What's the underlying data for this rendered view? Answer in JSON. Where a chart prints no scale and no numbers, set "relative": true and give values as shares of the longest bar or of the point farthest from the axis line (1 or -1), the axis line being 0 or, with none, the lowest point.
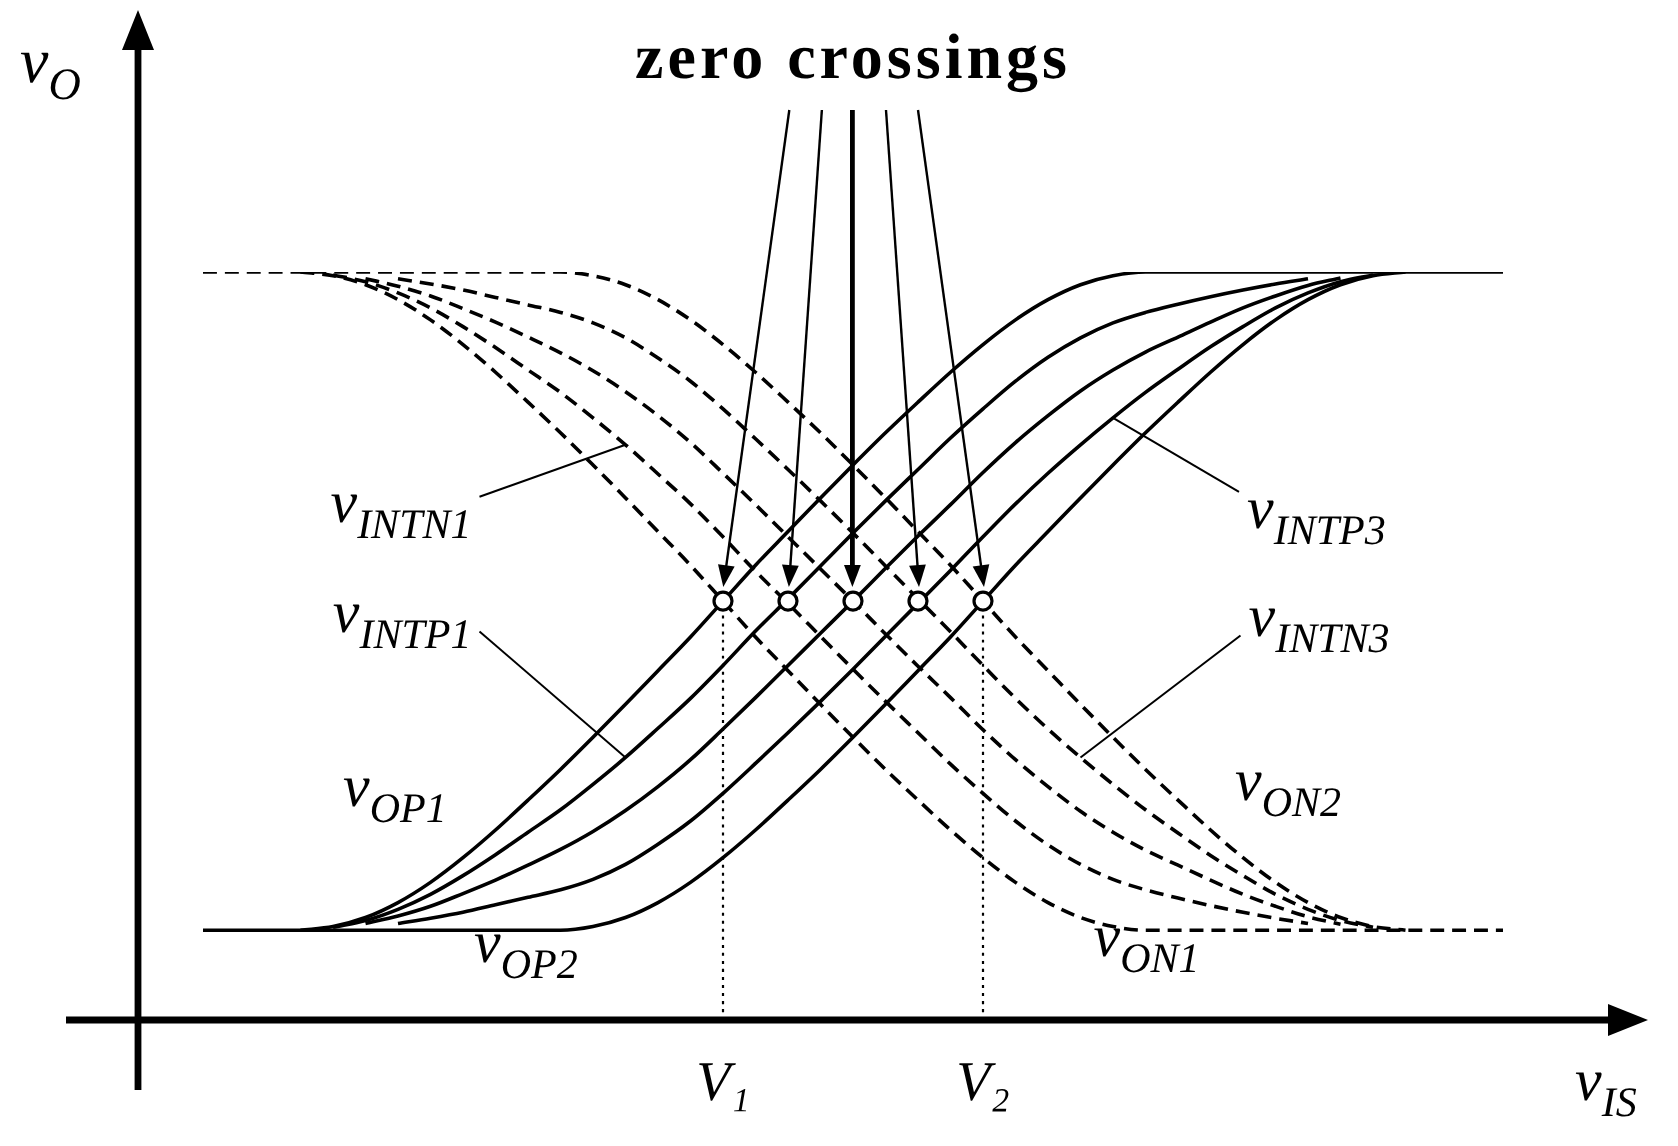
{
  "chart_data": {
    "type": "line",
    "relative": true,
    "xlabel": "v$_{IS}$",
    "ylabel": "v$_{O}$",
    "annotations": [
      "zero crossings",
      "v$_{INTN1}$",
      "v$_{INTP3}$",
      "v$_{INTP1}$",
      "v$_{INTN3}$"
    ],
    "tick_labels": "x",
    "categories": [
      null,
      null,
      null,
      null,
      null,
      null,
      null,
      null,
      null,
      null,
      null,
      null,
      null,
      null,
      null,
      null,
      null,
      null,
      "V₁",
      null,
      null,
      null,
      null,
      null,
      null,
      null,
      "V₂",
      null,
      null,
      null,
      null,
      null,
      null,
      null,
      null,
      null,
      null,
      null,
      null,
      null,
      null,
      null,
      null
    ],
    "series": [
      {
        "name": "v$_{OP1}$",
        "color": "#000000",
        "values": [
          null,
          null,
          null,
          null,
          null,
          0.12,
          0.125,
          0.137,
          0.157,
          0.184,
          0.217,
          0.254,
          0.294,
          0.335,
          0.378,
          0.422,
          0.467,
          0.512,
          0.56,
          0.608,
          0.653,
          0.698,
          0.742,
          0.785,
          0.826,
          0.866,
          0.903,
          0.936,
          0.963,
          0.983,
          0.995,
          1,
          1,
          1,
          1,
          1,
          1,
          1,
          1,
          1,
          1,
          1,
          1
        ]
      },
      {
        "color": "#000000",
        "values": [
          null,
          null,
          null,
          null,
          null,
          null,
          0.124,
          0.133,
          0.148,
          0.168,
          0.193,
          0.221,
          0.251,
          0.281,
          0.315,
          0.351,
          0.39,
          0.43,
          0.474,
          0.52,
          0.563,
          0.607,
          0.651,
          0.694,
          0.736,
          0.778,
          0.817,
          0.854,
          0.886,
          0.912,
          0.932,
          0.946,
          0.957,
          0.967,
          0.976,
          0.984,
          0.991,
          null,
          null,
          null,
          null,
          null,
          null
        ]
      },
      {
        "color": "#000000",
        "values": [
          null,
          null,
          null,
          null,
          null,
          null,
          null,
          0.129,
          0.139,
          0.152,
          0.169,
          0.187,
          0.207,
          0.228,
          0.252,
          0.28,
          0.312,
          0.348,
          0.389,
          0.431,
          0.474,
          0.517,
          0.56,
          0.604,
          0.647,
          0.689,
          0.732,
          0.772,
          0.808,
          0.841,
          0.869,
          0.893,
          0.913,
          0.933,
          0.952,
          0.968,
          0.982,
          0.992,
          null,
          null,
          null,
          null,
          null
        ]
      },
      {
        "color": "#000000",
        "values": [
          null,
          null,
          null,
          null,
          null,
          null,
          null,
          null,
          0.129,
          0.136,
          0.144,
          0.154,
          0.164,
          0.174,
          0.188,
          0.208,
          0.235,
          0.266,
          0.303,
          0.343,
          0.384,
          0.426,
          0.469,
          0.513,
          0.557,
          0.601,
          0.646,
          0.69,
          0.731,
          0.769,
          0.805,
          0.839,
          0.87,
          0.9,
          0.927,
          0.952,
          0.972,
          0.987,
          0.996,
          null,
          null,
          null,
          null
        ]
      },
      {
        "name": "v$_{OP2}$",
        "color": "#000000",
        "values": [
          null,
          null,
          0.12,
          0.12,
          0.12,
          0.12,
          0.12,
          0.12,
          0.12,
          0.12,
          0.12,
          0.12,
          0.12,
          0.12,
          0.125,
          0.137,
          0.157,
          0.184,
          0.217,
          0.254,
          0.294,
          0.335,
          0.378,
          0.422,
          0.467,
          0.512,
          0.56,
          0.608,
          0.653,
          0.698,
          0.742,
          0.785,
          0.826,
          0.866,
          0.903,
          0.936,
          0.963,
          0.983,
          0.995,
          1,
          null,
          null,
          null
        ]
      },
      {
        "name": "v$_{ON1}$",
        "color": "#000000",
        "line_style": "dashed",
        "values": [
          null,
          null,
          null,
          null,
          null,
          1,
          0.995,
          0.983,
          0.963,
          0.936,
          0.903,
          0.866,
          0.826,
          0.785,
          0.742,
          0.698,
          0.653,
          0.608,
          0.56,
          0.512,
          0.467,
          0.422,
          0.378,
          0.335,
          0.294,
          0.254,
          0.217,
          0.184,
          0.157,
          0.137,
          0.125,
          0.12,
          0.12,
          0.12,
          0.12,
          0.12,
          0.12,
          0.12,
          0.12,
          0.12,
          0.12,
          0.12,
          0.12
        ]
      },
      {
        "color": "#000000",
        "line_style": "dashed",
        "values": [
          null,
          null,
          null,
          null,
          null,
          null,
          0.996,
          0.987,
          0.972,
          0.952,
          0.927,
          0.899,
          0.869,
          0.839,
          0.805,
          0.769,
          0.73,
          0.69,
          0.646,
          0.6,
          0.557,
          0.513,
          0.469,
          0.426,
          0.384,
          0.342,
          0.303,
          0.266,
          0.234,
          0.208,
          0.188,
          0.174,
          0.163,
          0.153,
          0.144,
          0.136,
          0.129,
          null,
          null,
          null,
          null,
          null,
          null
        ]
      },
      {
        "color": "#000000",
        "line_style": "dashed",
        "values": [
          null,
          null,
          null,
          null,
          null,
          null,
          null,
          0.991,
          0.981,
          0.968,
          0.951,
          0.933,
          0.913,
          0.892,
          0.868,
          0.84,
          0.808,
          0.772,
          0.731,
          0.689,
          0.646,
          0.603,
          0.56,
          0.516,
          0.473,
          0.431,
          0.388,
          0.348,
          0.312,
          0.279,
          0.251,
          0.227,
          0.207,
          0.187,
          0.168,
          0.152,
          0.138,
          0.128,
          null,
          null,
          null,
          null,
          null
        ]
      },
      {
        "color": "#000000",
        "line_style": "dashed",
        "values": [
          null,
          null,
          null,
          null,
          null,
          null,
          null,
          null,
          0.991,
          0.984,
          0.976,
          0.966,
          0.956,
          0.946,
          0.932,
          0.912,
          0.885,
          0.854,
          0.817,
          0.777,
          0.736,
          0.694,
          0.651,
          0.607,
          0.563,
          0.519,
          0.474,
          0.43,
          0.389,
          0.351,
          0.315,
          0.281,
          0.25,
          0.22,
          0.193,
          0.168,
          0.148,
          0.133,
          0.124,
          null,
          null,
          null,
          null
        ]
      },
      {
        "name": "v$_{ON2}$",
        "color": "#000000",
        "line_style": "dashed",
        "values": [
          null,
          null,
          1,
          1,
          1,
          1,
          1,
          1,
          1,
          1,
          1,
          1,
          1,
          1,
          0.995,
          0.983,
          0.963,
          0.936,
          0.903,
          0.866,
          0.826,
          0.785,
          0.742,
          0.698,
          0.653,
          0.608,
          0.56,
          0.512,
          0.467,
          0.422,
          0.378,
          0.335,
          0.294,
          0.254,
          0.217,
          0.184,
          0.157,
          0.137,
          0.125,
          0.12,
          null,
          null,
          null
        ]
      },
      {
        "type": "line",
        "line_style": "dotted",
        "color": "#000000",
        "x": [
          "V₁",
          "V₁"
        ],
        "values": [
          0,
          0.56
        ]
      },
      {
        "type": "line",
        "line_style": "dotted",
        "color": "#000000",
        "x": [
          "V₂",
          "V₂"
        ],
        "values": [
          0,
          0.56
        ]
      },
      {
        "type": "scatter",
        "marker": "circle",
        "color": "#000000",
        "values": [
          null,
          null,
          null,
          null,
          null,
          null,
          null,
          null,
          null,
          null,
          null,
          null,
          null,
          null,
          null,
          null,
          null,
          null,
          0.56,
          null,
          0.56,
          null,
          0.56,
          null,
          0.56,
          null,
          0.56,
          null,
          null,
          null,
          null,
          null,
          null,
          null,
          null,
          null,
          null,
          null,
          null,
          null,
          null,
          null,
          null
        ]
      }
    ]
  }
}
